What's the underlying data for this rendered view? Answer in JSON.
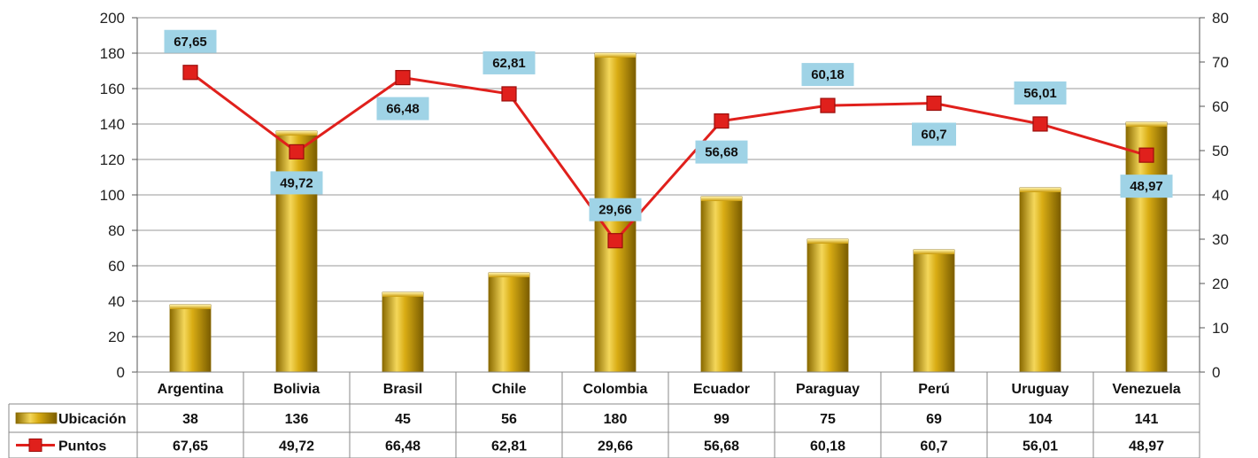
{
  "chart_data": {
    "type": "bar",
    "categories": [
      "Argentina",
      "Bolivia",
      "Brasil",
      "Chile",
      "Colombia",
      "Ecuador",
      "Paraguay",
      "Perú",
      "Uruguay",
      "Venezuela"
    ],
    "series": [
      {
        "name": "Ubicación",
        "type": "bar",
        "axis": "left",
        "values": [
          38,
          136,
          45,
          56,
          180,
          99,
          75,
          69,
          104,
          141
        ]
      },
      {
        "name": "Puntos",
        "type": "line",
        "axis": "right",
        "values": [
          67.65,
          49.72,
          66.48,
          62.81,
          29.66,
          56.68,
          60.18,
          60.7,
          56.01,
          48.97
        ],
        "labels": [
          "67,65",
          "49,72",
          "66,48",
          "62,81",
          "29,66",
          "56,68",
          "60,18",
          "60,7",
          "56,01",
          "48,97"
        ]
      }
    ],
    "table_rows": {
      "ubicacion": [
        "38",
        "136",
        "45",
        "56",
        "180",
        "99",
        "75",
        "69",
        "104",
        "141"
      ],
      "puntos": [
        "67,65",
        "49,72",
        "66,48",
        "62,81",
        "29,66",
        "56,68",
        "60,18",
        "60,7",
        "56,01",
        "48,97"
      ]
    },
    "y_left": {
      "min": 0,
      "max": 200,
      "ticks": [
        "0",
        "20",
        "40",
        "60",
        "80",
        "100",
        "120",
        "140",
        "160",
        "180",
        "200"
      ]
    },
    "y_right": {
      "min": 0,
      "max": 80,
      "ticks": [
        "0",
        "10",
        "20",
        "30",
        "40",
        "50",
        "60",
        "70",
        "80"
      ]
    },
    "grid": true,
    "legend_placement": "data-table",
    "colors": {
      "bar": "#d4a90f",
      "bar_light": "#f4d75a",
      "bar_dark": "#8a6a00",
      "line": "#e0201c",
      "marker": "#e0201c",
      "label_bg": "#9fd3e6",
      "grid": "#9a9a9a"
    }
  }
}
